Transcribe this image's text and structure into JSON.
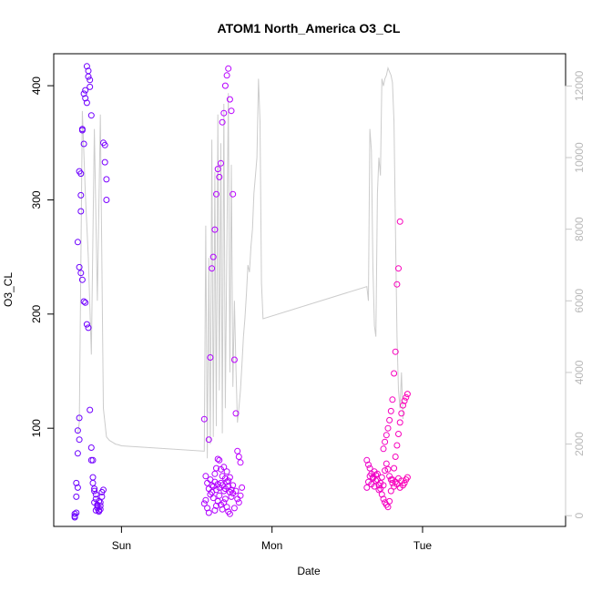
{
  "chart_data": {
    "type": "scatter",
    "title": "ATOM1 North_America O3_CL",
    "xlabel": "Date",
    "ylabel": "O3_CL",
    "x_ticks": [
      {
        "label": "Sun",
        "value": 1.0
      },
      {
        "label": "Mon",
        "value": 2.0
      },
      {
        "label": "Tue",
        "value": 3.0
      }
    ],
    "xlim": [
      0.55,
      3.95
    ],
    "ylim": [
      14,
      428
    ],
    "y_ticks": [
      100,
      200,
      300,
      400
    ],
    "y2lim": [
      -300,
      12900
    ],
    "y2_ticks": [
      0,
      2000,
      4000,
      6000,
      8000,
      10000,
      12000
    ],
    "y2_color": "#c8c8c8",
    "marker": "open-circle",
    "color_gradient": [
      "#6a00ff",
      "#c000ff",
      "#ff00b4"
    ],
    "scatter_series": [
      {
        "x": [
          0.69,
          0.69,
          0.69,
          0.7,
          0.7,
          0.7,
          0.71,
          0.71,
          0.71,
          0.72,
          0.72,
          0.72,
          0.73,
          0.73,
          0.73,
          0.74,
          0.74,
          0.75,
          0.75,
          0.76,
          0.76,
          0.77,
          0.77,
          0.78,
          0.78,
          0.79,
          0.79,
          0.8,
          0.8,
          0.81,
          0.81,
          0.82,
          0.82,
          0.83,
          0.83,
          0.84,
          0.84,
          0.85,
          0.85,
          0.86,
          0.86,
          0.87,
          0.87,
          0.88,
          0.88,
          0.89,
          0.89,
          0.9,
          0.9,
          0.71,
          0.72,
          0.73,
          0.74,
          0.75,
          0.76,
          0.77,
          0.78,
          0.79,
          0.8,
          0.81,
          0.82,
          0.83,
          0.84,
          0.85,
          0.86
        ],
        "y": [
          22,
          23,
          25,
          26,
          40,
          52,
          48,
          78,
          98,
          109,
          90,
          325,
          323,
          304,
          290,
          362,
          361,
          349,
          393,
          389,
          396,
          385,
          417,
          413,
          408,
          399,
          405,
          374,
          83,
          72,
          57,
          45,
          47,
          42,
          38,
          33,
          30,
          28,
          27,
          32,
          35,
          44,
          40,
          46,
          350,
          348,
          333,
          318,
          300,
          263,
          241,
          236,
          230,
          211,
          210,
          191,
          188,
          116,
          72,
          52,
          35,
          28,
          32,
          36,
          29
        ]
      },
      {
        "x": [
          1.55,
          1.56,
          1.57,
          1.58,
          1.59,
          1.6,
          1.61,
          1.62,
          1.63,
          1.64,
          1.65,
          1.66,
          1.67,
          1.68,
          1.69,
          1.7,
          1.71,
          1.72,
          1.73,
          1.74,
          1.55,
          1.56,
          1.57,
          1.58,
          1.59,
          1.6,
          1.61,
          1.62,
          1.63,
          1.64,
          1.65,
          1.66,
          1.67,
          1.68,
          1.69,
          1.7,
          1.71,
          1.72,
          1.73,
          1.74,
          1.75,
          1.76,
          1.77,
          1.78,
          1.79,
          1.8,
          1.58,
          1.59,
          1.6,
          1.61,
          1.62,
          1.63,
          1.64,
          1.65,
          1.66,
          1.67,
          1.68,
          1.69,
          1.7,
          1.71,
          1.72,
          1.73,
          1.74,
          1.75,
          1.76,
          1.77,
          1.78,
          1.79,
          1.62,
          1.63,
          1.64,
          1.65,
          1.66,
          1.67,
          1.68,
          1.69,
          1.7,
          1.71,
          1.72
        ],
        "y": [
          108,
          58,
          52,
          47,
          55,
          50,
          49,
          53,
          46,
          51,
          48,
          52,
          50,
          45,
          47,
          53,
          49,
          44,
          46,
          50,
          34,
          37,
          30,
          26,
          42,
          44,
          39,
          28,
          32,
          36,
          41,
          33,
          29,
          35,
          38,
          31,
          27,
          25,
          40,
          43,
          30,
          45,
          38,
          35,
          41,
          48,
          90,
          162,
          240,
          250,
          274,
          305,
          327,
          320,
          332,
          368,
          376,
          400,
          409,
          415,
          388,
          378,
          305,
          160,
          113,
          80,
          75,
          70,
          60,
          65,
          73,
          72,
          64,
          58,
          66,
          56,
          62,
          54,
          57
        ]
      },
      {
        "x": [
          2.63,
          2.64,
          2.65,
          2.66,
          2.67,
          2.68,
          2.69,
          2.7,
          2.71,
          2.72,
          2.73,
          2.74,
          2.75,
          2.76,
          2.77,
          2.78,
          2.79,
          2.8,
          2.81,
          2.82,
          2.83,
          2.84,
          2.85,
          2.86,
          2.87,
          2.88,
          2.89,
          2.9,
          2.63,
          2.64,
          2.65,
          2.66,
          2.67,
          2.68,
          2.69,
          2.7,
          2.71,
          2.72,
          2.73,
          2.74,
          2.75,
          2.76,
          2.77,
          2.78,
          2.79,
          2.8,
          2.81,
          2.82,
          2.83,
          2.84,
          2.85,
          2.86,
          2.87,
          2.88,
          2.89,
          2.9,
          2.74,
          2.75,
          2.76,
          2.77,
          2.78,
          2.79,
          2.8,
          2.81,
          2.82,
          2.83,
          2.84,
          2.85
        ],
        "y": [
          72,
          68,
          65,
          60,
          57,
          62,
          59,
          55,
          50,
          47,
          42,
          38,
          35,
          33,
          31,
          36,
          45,
          55,
          65,
          75,
          85,
          95,
          105,
          113,
          120,
          124,
          127,
          130,
          48,
          53,
          58,
          51,
          56,
          49,
          54,
          60,
          46,
          52,
          57,
          50,
          63,
          69,
          64,
          58,
          55,
          52,
          49,
          53,
          51,
          56,
          48,
          54,
          50,
          52,
          55,
          57,
          82,
          88,
          94,
          100,
          107,
          115,
          125,
          148,
          167,
          226,
          240,
          281
        ]
      }
    ],
    "line_series": {
      "color": "#cccccc",
      "axis": "right",
      "x": [
        0.71,
        0.72,
        0.74,
        0.76,
        0.78,
        0.8,
        0.82,
        0.84,
        0.86,
        0.88,
        0.9,
        0.92,
        0.94,
        0.96,
        0.98,
        1.0,
        1.55,
        1.56,
        1.57,
        1.58,
        1.59,
        1.6,
        1.61,
        1.62,
        1.63,
        1.64,
        1.65,
        1.66,
        1.67,
        1.68,
        1.69,
        1.7,
        1.71,
        1.72,
        1.73,
        1.74,
        1.75,
        1.76,
        1.77,
        1.78,
        1.79,
        1.8,
        1.81,
        1.82,
        1.83,
        1.84,
        1.85,
        1.86,
        1.87,
        1.88,
        1.89,
        1.9,
        1.91,
        1.92,
        1.93,
        1.94,
        2.63,
        2.64,
        2.65,
        2.66,
        2.67,
        2.68,
        2.69,
        2.7,
        2.71,
        2.72,
        2.73,
        2.74,
        2.75,
        2.76,
        2.77,
        2.78,
        2.79,
        2.8,
        2.81,
        2.82,
        2.83,
        2.84,
        2.85,
        2.86,
        2.87
      ],
      "y": [
        2300,
        2600,
        11300,
        9000,
        7200,
        4500,
        10800,
        6000,
        11200,
        3000,
        2200,
        2100,
        2050,
        2000,
        1980,
        1950,
        1800,
        8100,
        1600,
        7200,
        2000,
        10500,
        2200,
        9600,
        2500,
        11200,
        3500,
        10400,
        2300,
        11500,
        3000,
        7500,
        11800,
        4000,
        9800,
        3600,
        6000,
        4200,
        2600,
        3000,
        3500,
        4200,
        5000,
        5500,
        6200,
        7000,
        6800,
        7500,
        8000,
        9000,
        9500,
        10000,
        12200,
        11000,
        6500,
        5500,
        6400,
        6000,
        10800,
        10200,
        7000,
        5300,
        5000,
        9000,
        10000,
        9500,
        12200,
        12000,
        12200,
        12300,
        12500,
        12400,
        12300,
        12100,
        11000,
        8000,
        5000,
        3500,
        3000,
        4000,
        2700
      ]
    }
  }
}
